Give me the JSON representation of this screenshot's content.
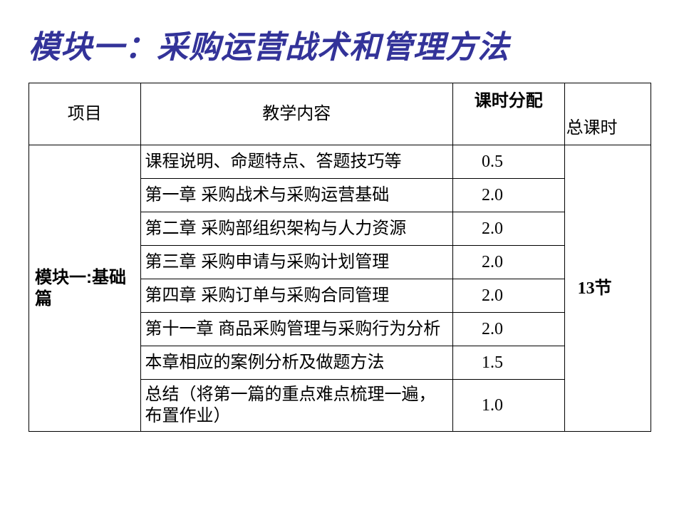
{
  "title": "模块一：采购运营战术和管理方法",
  "headers": {
    "project": "项目",
    "content": "教学内容",
    "hours": "课时分配",
    "total": "总课时"
  },
  "project_label": "模块一:基础篇",
  "total_label_num": "13",
  "total_label_unit": "节",
  "rows": [
    {
      "content": "课程说明、命题特点、答题技巧等",
      "hours": "0.5"
    },
    {
      "content": "第一章  采购战术与采购运营基础",
      "hours": "2.0"
    },
    {
      "content": "第二章  采购部组织架构与人力资源",
      "hours": "2.0"
    },
    {
      "content": "第三章  采购申请与采购计划管理",
      "hours": "2.0"
    },
    {
      "content": "第四章  采购订单与采购合同管理",
      "hours": "2.0"
    },
    {
      "content": "第十一章 商品采购管理与采购行为分析",
      "hours": "2.0"
    },
    {
      "content": "本章相应的案例分析及做题方法",
      "hours": "1.5"
    },
    {
      "content": "总结（将第一篇的重点难点梳理一遍，布置作业）",
      "hours": "1.0"
    }
  ],
  "style": {
    "title_color": "#333399",
    "border_color": "#000000",
    "background": "#ffffff",
    "title_fontsize": 44,
    "cell_fontsize": 24
  }
}
